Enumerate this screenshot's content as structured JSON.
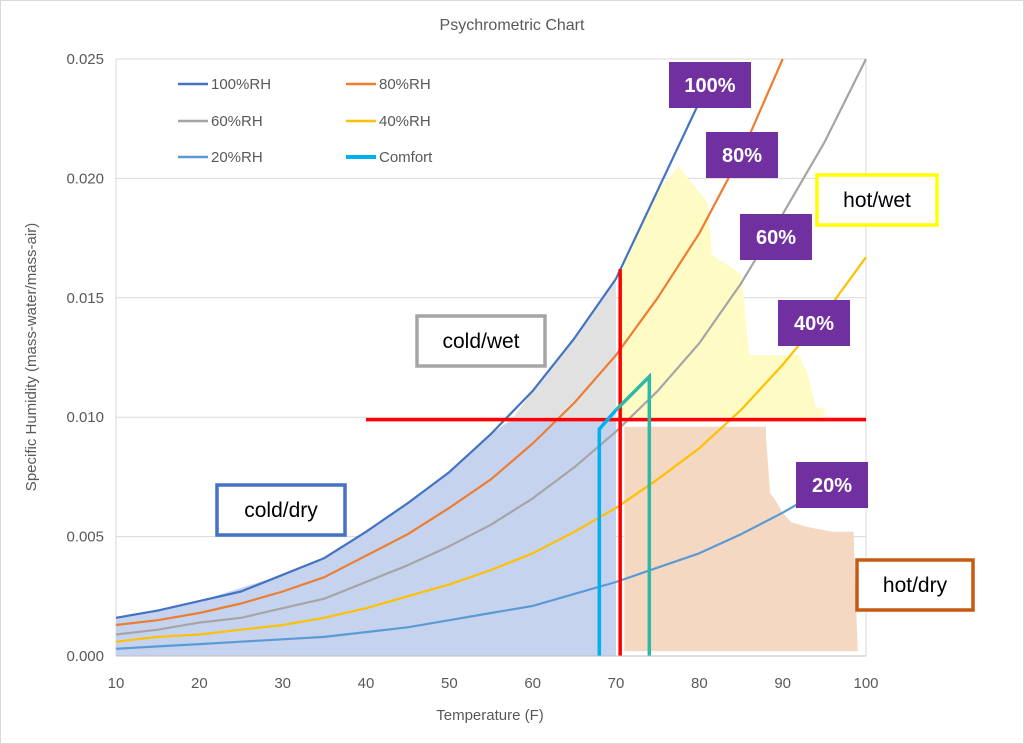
{
  "chart_data": {
    "type": "line",
    "title": "Psychrometric Chart",
    "xlabel": "Temperature (F)",
    "ylabel": "Specific Humidity (mass-water/mass-air)",
    "xlim": [
      10,
      100
    ],
    "ylim": [
      0,
      0.025
    ],
    "x_ticks": [
      10,
      20,
      30,
      40,
      50,
      60,
      70,
      80,
      90,
      100
    ],
    "x_tick_labels": [
      "10",
      "20",
      "30",
      "40",
      "50",
      "60",
      "70",
      "80",
      "90",
      "100"
    ],
    "y_ticks": [
      0,
      0.005,
      0.01,
      0.015,
      0.02,
      0.025
    ],
    "y_tick_labels": [
      "0.000",
      "0.005",
      "0.010",
      "0.015",
      "0.020",
      "0.025"
    ],
    "grid": "horizontal",
    "legend_position": "top-left",
    "x": [
      10,
      15,
      20,
      25,
      30,
      35,
      40,
      45,
      50,
      55,
      60,
      65,
      70,
      75,
      80,
      85,
      90,
      95,
      100
    ],
    "series": [
      {
        "name": "100%RH",
        "color": "#4472C4",
        "values": [
          0.0016,
          0.0019,
          0.0023,
          0.0027,
          0.0034,
          0.0041,
          0.0052,
          0.0064,
          0.0077,
          0.0093,
          0.0111,
          0.0133,
          0.0158,
          0.0195,
          0.0232,
          null,
          null,
          null,
          null
        ]
      },
      {
        "name": "80%RH",
        "color": "#ED7D31",
        "values": [
          0.0013,
          0.0015,
          0.0018,
          0.0022,
          0.0027,
          0.0033,
          0.0042,
          0.0051,
          0.0062,
          0.0074,
          0.0089,
          0.0106,
          0.0126,
          0.015,
          0.0177,
          0.021,
          0.025,
          null,
          null
        ]
      },
      {
        "name": "60%RH",
        "color": "#A5A5A5",
        "values": [
          0.0009,
          0.0011,
          0.0014,
          0.0016,
          0.002,
          0.0024,
          0.0031,
          0.0038,
          0.0046,
          0.0055,
          0.0066,
          0.0079,
          0.0094,
          0.0111,
          0.0131,
          0.0156,
          0.0185,
          0.0215,
          0.025
        ]
      },
      {
        "name": "40%RH",
        "color": "#FFC000",
        "values": [
          0.0006,
          0.0008,
          0.0009,
          0.0011,
          0.0013,
          0.0016,
          0.002,
          0.0025,
          0.003,
          0.0036,
          0.0043,
          0.0052,
          0.0062,
          0.0074,
          0.0087,
          0.0103,
          0.0122,
          0.0143,
          0.0167
        ]
      },
      {
        "name": "20%RH",
        "color": "#5B9BD5",
        "values": [
          0.0003,
          0.0004,
          0.0005,
          0.0006,
          0.0007,
          0.0008,
          0.001,
          0.0012,
          0.0015,
          0.0018,
          0.0021,
          0.0026,
          0.0031,
          0.0037,
          0.0043,
          0.0051,
          0.006,
          0.007,
          0.0081
        ]
      },
      {
        "name": "Comfort",
        "color": "#00B0F0",
        "points": [
          [
            68,
            0
          ],
          [
            68,
            0.0095
          ],
          [
            70,
            0.0103
          ],
          [
            74,
            0.0117
          ],
          [
            74,
            0
          ]
        ]
      }
    ],
    "reference_lines": [
      {
        "orientation": "vertical",
        "x": 70.5,
        "y_range": [
          0,
          0.0162
        ],
        "color": "#FF0000"
      },
      {
        "orientation": "horizontal",
        "y": 0.0099,
        "x_range": [
          40,
          100
        ],
        "color": "#FF0000"
      }
    ],
    "regions": [
      {
        "label": "cold/dry",
        "fill": "#C5D3EE",
        "border": "#4472C4"
      },
      {
        "label": "cold/wet",
        "fill": "#E1E1E1",
        "border": "#A5A5A5"
      },
      {
        "label": "hot/wet",
        "fill": "#FFFBC5",
        "border": "#FFFF00"
      },
      {
        "label": "hot/dry",
        "fill": "#F5D8C1",
        "border": "#C55A11"
      }
    ],
    "rh_labels": [
      "100%",
      "80%",
      "60%",
      "40%",
      "20%"
    ],
    "rh_label_fill": "#7030A0"
  }
}
